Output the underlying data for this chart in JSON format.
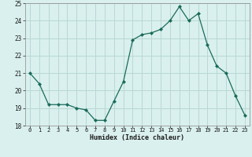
{
  "x": [
    0,
    1,
    2,
    3,
    4,
    5,
    6,
    7,
    8,
    9,
    10,
    11,
    12,
    13,
    14,
    15,
    16,
    17,
    18,
    19,
    20,
    21,
    22,
    23
  ],
  "y": [
    21.0,
    20.4,
    19.2,
    19.2,
    19.2,
    19.0,
    18.9,
    18.3,
    18.3,
    19.4,
    20.5,
    22.9,
    23.2,
    23.3,
    23.5,
    24.0,
    24.8,
    24.0,
    24.4,
    22.6,
    21.4,
    21.0,
    19.7,
    18.6
  ],
  "xlabel": "Humidex (Indice chaleur)",
  "ylim": [
    18,
    25
  ],
  "xlim": [
    -0.5,
    23.5
  ],
  "bg_color": "#d9f0ee",
  "grid_color": "#b8d8d5",
  "line_color": "#1a6b5a",
  "marker_color": "#1a6b5a",
  "tick_label_color": "#1a1a1a",
  "xlabel_color": "#1a1a1a",
  "yticks": [
    18,
    19,
    20,
    21,
    22,
    23,
    24,
    25
  ],
  "xticks": [
    0,
    1,
    2,
    3,
    4,
    5,
    6,
    7,
    8,
    9,
    10,
    11,
    12,
    13,
    14,
    15,
    16,
    17,
    18,
    19,
    20,
    21,
    22,
    23
  ]
}
